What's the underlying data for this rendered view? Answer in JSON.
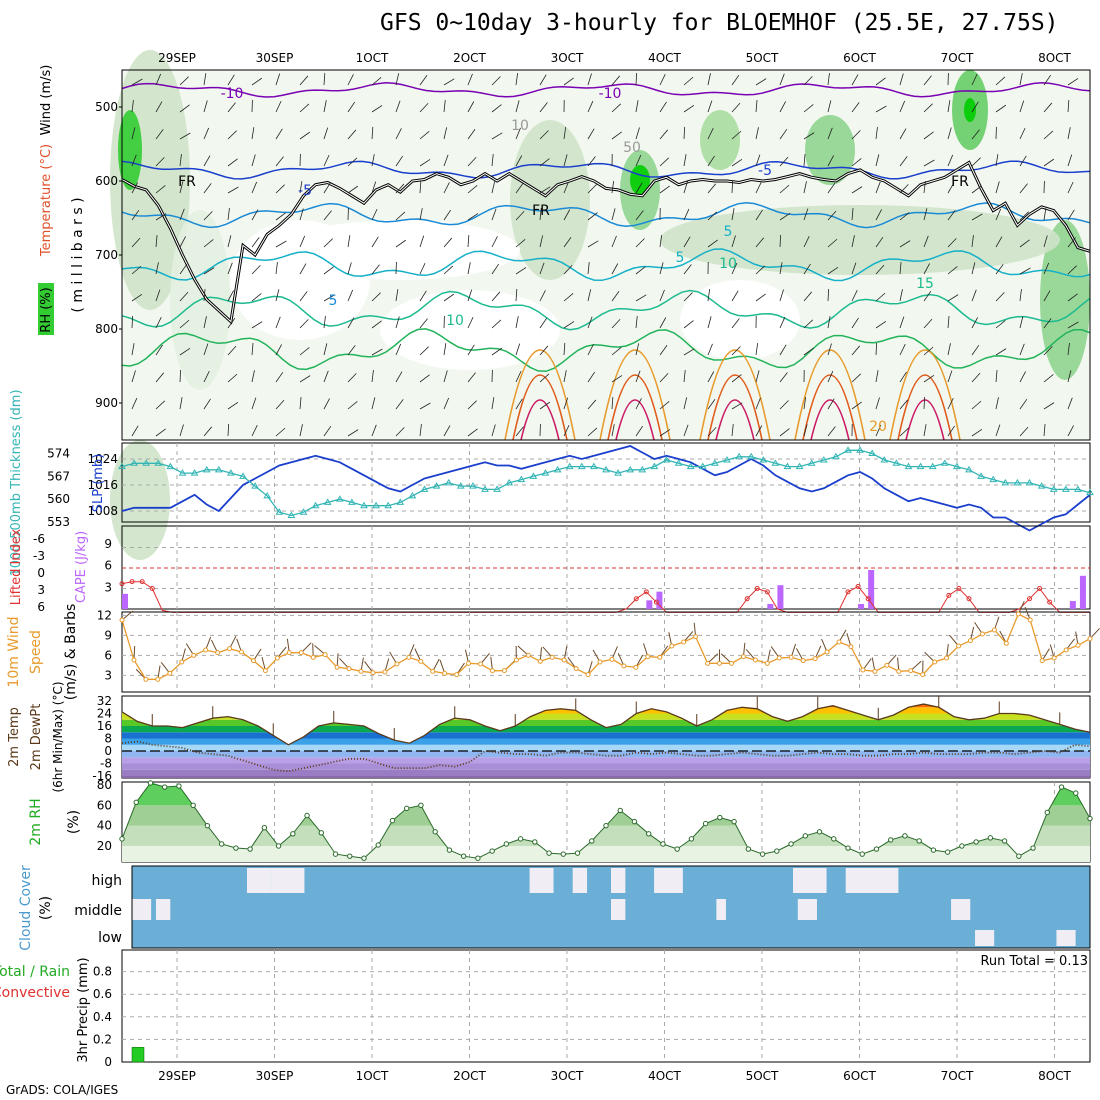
{
  "title": "GFS 0~10day 3-hourly for BLOEMHOF (25.5E, 27.75S)",
  "credit": "GrADS: COLA/IGES",
  "chart_data": [
    {
      "type": "heatmap",
      "panel": "upper-air",
      "ylabel_parts": [
        {
          "text": "RH (%)",
          "color": "#000000"
        },
        {
          "text": "Temperature (°C)",
          "color": "#e0502a"
        },
        {
          "text": "Wind (m/s)",
          "color": "#000000"
        }
      ],
      "ylabel_units": "( m i l l i b a r s )",
      "yticks": [
        500,
        600,
        700,
        800,
        900
      ],
      "ylim": [
        450,
        950
      ],
      "x_ticks_top": [
        "29SEP",
        "30SEP",
        "1OCT",
        "2OCT",
        "3OCT",
        "4OCT",
        "5OCT",
        "6OCT",
        "7OCT",
        "8OCT"
      ],
      "contour_labels": [
        "-10",
        "-10",
        "-5",
        "-5",
        "FR",
        "FR",
        "FR",
        "5",
        "5",
        "5",
        "10",
        "10",
        "15",
        "20",
        "10",
        "50"
      ],
      "freezing_level_mb": [
        598,
        607,
        612,
        633,
        664,
        700,
        733,
        760,
        775,
        790,
        687,
        700,
        672,
        660,
        645,
        620,
        605,
        602,
        610,
        620,
        630,
        612,
        605,
        615,
        600,
        598,
        590,
        595,
        605,
        600,
        590,
        600,
        590,
        600,
        610,
        620,
        605,
        600,
        594,
        600,
        610,
        612,
        618,
        620,
        600,
        595,
        605,
        600,
        598,
        600,
        600,
        602,
        598,
        600,
        598,
        594,
        590,
        595,
        598,
        600,
        590,
        585,
        595,
        600,
        610,
        620,
        605,
        600,
        595,
        585,
        575,
        610,
        640,
        630,
        660,
        645,
        635,
        640,
        660,
        690,
        695
      ]
    },
    {
      "type": "line",
      "panel": "slp-thickness",
      "ylabel_left": "1000-500mb Thickness (dm)",
      "ylabel_right": "SLP (mb)",
      "left_ticks": [
        553,
        560,
        567,
        574
      ],
      "right_ticks": [
        1008,
        1016,
        1024
      ],
      "series": [
        {
          "name": "SLP",
          "values": [
            1008,
            1009,
            1009,
            1009,
            1009,
            1011,
            1013,
            1010,
            1008,
            1012,
            1016,
            1018,
            1020,
            1022,
            1023,
            1024,
            1025,
            1024,
            1023,
            1021,
            1019,
            1017,
            1015,
            1014,
            1016,
            1018,
            1019,
            1020,
            1021,
            1022,
            1023,
            1022,
            1022,
            1021,
            1022,
            1023,
            1024,
            1025,
            1024,
            1025,
            1026,
            1027,
            1028,
            1026,
            1024,
            1025,
            1024,
            1023,
            1021,
            1019,
            1020,
            1022,
            1024,
            1022,
            1019,
            1017,
            1015,
            1014,
            1015,
            1017,
            1019,
            1020,
            1018,
            1015,
            1013,
            1011,
            1012,
            1011,
            1010,
            1009,
            1010,
            1009,
            1006,
            1006,
            1004,
            1002,
            1004,
            1006,
            1007,
            1010,
            1013
          ]
        },
        {
          "name": "Thickness",
          "values": [
            570,
            571,
            571,
            571,
            570,
            568,
            568,
            569,
            569,
            568,
            567,
            564,
            561,
            556,
            555,
            556,
            558,
            559,
            560,
            559,
            558,
            558,
            558,
            559,
            561,
            563,
            564,
            565,
            564,
            564,
            563,
            563,
            565,
            566,
            567,
            568,
            569,
            570,
            570,
            570,
            569,
            568,
            569,
            569,
            570,
            572,
            571,
            570,
            570,
            571,
            572,
            573,
            573,
            572,
            571,
            570,
            570,
            571,
            572,
            573,
            575,
            575,
            574,
            572,
            571,
            570,
            570,
            570,
            571,
            570,
            569,
            567,
            566,
            565,
            565,
            565,
            564,
            563,
            563,
            563,
            562
          ]
        }
      ]
    },
    {
      "type": "bar",
      "panel": "cape-li",
      "ylabel_left": "Lifted Index",
      "ylabel_right": "CAPE (J/kg)",
      "left_ticks": [
        "-6",
        "-3",
        "0",
        "3",
        "6"
      ],
      "right_ticks": [
        3,
        6,
        9
      ],
      "series": [
        {
          "name": "CAPE",
          "bar_indices": [
            0,
            52,
            53,
            64,
            65,
            73,
            74,
            94,
            95
          ],
          "bar_values": [
            2.1,
            1.2,
            2.4,
            0.7,
            3.3,
            0.7,
            5.4,
            1.1,
            4.6
          ]
        },
        {
          "name": "Lifted Index",
          "values": [
            2.3,
            2.0,
            2.0,
            3.0,
            6.2,
            6.5,
            6.5,
            6.5,
            6.5,
            6.5,
            6.5,
            6.5,
            6.5,
            6.5,
            6.5,
            6.5,
            6.5,
            6.5,
            6.5,
            6.5,
            6.5,
            6.5,
            6.5,
            6.5,
            6.5,
            6.5,
            6.5,
            6.5,
            6.5,
            6.5,
            6.5,
            6.5,
            6.5,
            6.5,
            6.5,
            6.5,
            6.5,
            6.5,
            6.5,
            6.5,
            6.5,
            6.5,
            6.5,
            6.5,
            6.5,
            6.5,
            6.5,
            6.5,
            6.5,
            6.5,
            6.0,
            4.5,
            3.5,
            5.0,
            6.5,
            6.5,
            6.5,
            6.5,
            6.5,
            6.5,
            6.5,
            6.5,
            4.5,
            3.0,
            3.5,
            6.0,
            6.5,
            6.5,
            6.5,
            6.5,
            6.5,
            6.5,
            3.5,
            2.7,
            4.5,
            6.5,
            6.5,
            6.5,
            6.5,
            6.5,
            6.5,
            6.5,
            4.0,
            3.0,
            4.5,
            6.5,
            6.5,
            6.5,
            6.5,
            6.0,
            4.5,
            3.0,
            5.0,
            6.5,
            6.5,
            6.5,
            6.5
          ]
        }
      ],
      "reference_line": 0
    },
    {
      "type": "line",
      "panel": "wind10m",
      "ylabel_left": "10m Wind",
      "ylabel_mid": "Speed",
      "ylabel_right": "(m/s) & Barbs",
      "yticks": [
        3,
        6,
        9,
        12
      ],
      "series": [
        {
          "name": "Speed",
          "values": [
            11.3,
            5.3,
            2.4,
            2.4,
            3.3,
            5.0,
            6.0,
            6.8,
            6.4,
            7.0,
            6.5,
            5.2,
            3.7,
            5.6,
            6.4,
            6.4,
            5.7,
            6.1,
            4.2,
            4.0,
            3.6,
            3.4,
            3.5,
            4.7,
            5.7,
            5.1,
            3.6,
            3.3,
            3.1,
            4.8,
            4.7,
            3.7,
            3.7,
            5.3,
            6.0,
            5.1,
            5.7,
            5.3,
            4.0,
            3.1,
            5.0,
            5.4,
            4.4,
            4.2,
            5.8,
            5.7,
            7.4,
            8.0,
            8.8,
            4.8,
            4.8,
            4.8,
            5.8,
            5.3,
            4.8,
            5.6,
            5.7,
            5.2,
            5.5,
            6.5,
            8.0,
            7.3,
            3.8,
            3.6,
            4.5,
            3.6,
            3.7,
            3.1,
            5.0,
            5.6,
            7.4,
            8.2,
            9.2,
            9.8,
            7.8,
            12.2,
            11.3,
            5.2,
            5.6,
            6.8,
            7.5,
            8.5
          ]
        }
      ]
    },
    {
      "type": "area",
      "panel": "temp2m",
      "ylabel_left": "2m Temp",
      "ylabel_mid": "2m DewPt",
      "ylabel_right": "(6hr Min/Max) (°C)",
      "yticks": [
        -16,
        -8,
        0,
        8,
        16,
        24,
        32
      ],
      "series": [
        {
          "name": "Temp",
          "values": [
            25,
            19,
            16,
            16,
            15,
            18,
            21,
            22,
            20,
            16,
            10,
            4,
            9,
            16,
            18,
            17,
            16,
            11,
            7,
            5,
            10,
            17,
            21,
            20,
            16,
            13,
            16,
            22,
            26,
            27,
            26,
            20,
            15,
            17,
            24,
            27,
            25,
            21,
            16,
            20,
            26,
            28,
            27,
            22,
            19,
            22,
            27,
            29,
            26,
            23,
            20,
            23,
            28,
            30,
            28,
            22,
            20,
            21,
            24,
            24,
            23,
            20,
            17,
            14,
            12
          ]
        },
        {
          "name": "DewPt",
          "values": [
            5,
            6,
            4,
            3,
            2,
            -1,
            -2,
            -3,
            -6,
            -9,
            -12,
            -13,
            -11,
            -9,
            -7,
            -5,
            -5,
            -8,
            -11,
            -11,
            -11,
            -9,
            -10,
            -7,
            0,
            -1,
            -2,
            -2,
            -3,
            -1,
            -1,
            -2,
            -3,
            -3,
            -1,
            -2,
            -1,
            -2,
            -3,
            -3,
            -2,
            -1,
            -2,
            -3,
            -3,
            -2,
            -1,
            -2,
            -2,
            -3,
            -3,
            -2,
            -2,
            -1,
            -2,
            -2,
            -2,
            -1,
            -1,
            -2,
            -1,
            0,
            -1,
            4,
            3
          ]
        }
      ]
    },
    {
      "type": "area",
      "panel": "rh2m",
      "ylabel_left": "2m RH",
      "ylabel_right": "(%)",
      "yticks": [
        20,
        40,
        60,
        80
      ],
      "series": [
        {
          "name": "RH",
          "values": [
            27,
            63,
            82,
            78,
            79,
            60,
            40,
            22,
            18,
            17,
            38,
            20,
            32,
            50,
            33,
            12,
            10,
            8,
            21,
            45,
            57,
            60,
            34,
            16,
            10,
            8,
            15,
            22,
            27,
            24,
            13,
            12,
            13,
            25,
            40,
            55,
            44,
            32,
            22,
            17,
            27,
            42,
            48,
            44,
            17,
            12,
            15,
            22,
            30,
            34,
            27,
            18,
            12,
            17,
            26,
            30,
            25,
            16,
            14,
            20,
            24,
            28,
            25,
            10,
            18,
            53,
            78,
            72,
            47
          ]
        }
      ]
    },
    {
      "type": "heatmap",
      "panel": "cloud",
      "ylabel_left": "Cloud Cover",
      "ylabel_right": "(%)",
      "row_labels": [
        "high",
        "middle",
        "low"
      ],
      "cloud_blocks": [
        {
          "row": "high",
          "start": 0.12,
          "end": 0.145
        },
        {
          "row": "high",
          "start": 0.145,
          "end": 0.18
        },
        {
          "row": "high",
          "start": 0.415,
          "end": 0.44
        },
        {
          "row": "high",
          "start": 0.46,
          "end": 0.475
        },
        {
          "row": "high",
          "start": 0.5,
          "end": 0.515
        },
        {
          "row": "high",
          "start": 0.545,
          "end": 0.575
        },
        {
          "row": "high",
          "start": 0.69,
          "end": 0.725
        },
        {
          "row": "high",
          "start": 0.745,
          "end": 0.8
        },
        {
          "row": "middle",
          "start": 0.0,
          "end": 0.02
        },
        {
          "row": "middle",
          "start": 0.025,
          "end": 0.04
        },
        {
          "row": "middle",
          "start": 0.5,
          "end": 0.515
        },
        {
          "row": "middle",
          "start": 0.61,
          "end": 0.62
        },
        {
          "row": "middle",
          "start": 0.695,
          "end": 0.715
        },
        {
          "row": "middle",
          "start": 0.855,
          "end": 0.875
        },
        {
          "row": "low",
          "start": 0.88,
          "end": 0.9
        },
        {
          "row": "low",
          "start": 0.965,
          "end": 0.985
        }
      ]
    },
    {
      "type": "bar",
      "panel": "precip",
      "ylabel_left": "Total / Rain",
      "ylabel_left2": "Convective",
      "ylabel_right": "3hr Precip (mm)",
      "yticks": [
        "0",
        "0.2",
        "0.4",
        "0.6",
        "0.8"
      ],
      "ylim": [
        0,
        1
      ],
      "run_total_label": "Run Total = 0.13",
      "series": [
        {
          "name": "Total",
          "bar_indices": [
            0
          ],
          "bar_values": [
            0.13
          ]
        }
      ],
      "x_ticks_bottom": [
        "29SEP",
        "30SEP",
        "1OCT",
        "2OCT",
        "3OCT",
        "4OCT",
        "5OCT",
        "6OCT",
        "7OCT",
        "8OCT"
      ]
    }
  ]
}
